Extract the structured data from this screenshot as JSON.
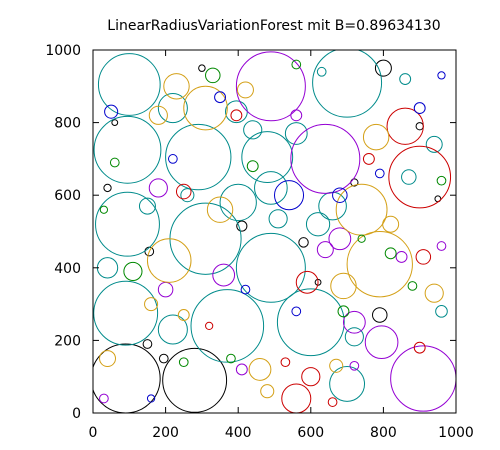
{
  "chart_data": {
    "type": "scatter",
    "title": "LinearRadiusVariationForest mit B=0.89634130",
    "xlabel": "",
    "ylabel": "",
    "xlim": [
      0,
      1000
    ],
    "ylim": [
      0,
      1000
    ],
    "xticks": [
      0,
      200,
      400,
      600,
      800,
      1000
    ],
    "yticks": [
      0,
      200,
      400,
      600,
      800,
      1000
    ],
    "grid": false,
    "legend": "none",
    "marker": "open-circle",
    "series": [
      {
        "color": "#000000",
        "points": [
          {
            "x": 90,
            "y": 95,
            "r": 95
          },
          {
            "x": 280,
            "y": 90,
            "r": 88
          },
          {
            "x": 800,
            "y": 950,
            "r": 22
          },
          {
            "x": 410,
            "y": 515,
            "r": 14
          },
          {
            "x": 580,
            "y": 470,
            "r": 13
          },
          {
            "x": 790,
            "y": 270,
            "r": 20
          },
          {
            "x": 155,
            "y": 445,
            "r": 12
          },
          {
            "x": 150,
            "y": 190,
            "r": 12
          },
          {
            "x": 195,
            "y": 150,
            "r": 12
          },
          {
            "x": 900,
            "y": 790,
            "r": 10
          },
          {
            "x": 720,
            "y": 635,
            "r": 10
          },
          {
            "x": 950,
            "y": 590,
            "r": 8
          },
          {
            "x": 40,
            "y": 620,
            "r": 10
          },
          {
            "x": 60,
            "y": 800,
            "r": 8
          },
          {
            "x": 300,
            "y": 950,
            "r": 9
          },
          {
            "x": 620,
            "y": 360,
            "r": 8
          }
        ]
      },
      {
        "color": "#008b8b",
        "points": [
          {
            "x": 100,
            "y": 905,
            "r": 85
          },
          {
            "x": 95,
            "y": 725,
            "r": 92
          },
          {
            "x": 95,
            "y": 520,
            "r": 88
          },
          {
            "x": 90,
            "y": 275,
            "r": 88
          },
          {
            "x": 490,
            "y": 400,
            "r": 95
          },
          {
            "x": 600,
            "y": 250,
            "r": 92
          },
          {
            "x": 370,
            "y": 240,
            "r": 100
          },
          {
            "x": 700,
            "y": 910,
            "r": 95
          },
          {
            "x": 290,
            "y": 705,
            "r": 90
          },
          {
            "x": 310,
            "y": 480,
            "r": 98
          },
          {
            "x": 480,
            "y": 705,
            "r": 70
          },
          {
            "x": 400,
            "y": 580,
            "r": 50
          },
          {
            "x": 490,
            "y": 620,
            "r": 45
          },
          {
            "x": 220,
            "y": 840,
            "r": 40
          },
          {
            "x": 660,
            "y": 570,
            "r": 38
          },
          {
            "x": 620,
            "y": 520,
            "r": 32
          },
          {
            "x": 220,
            "y": 230,
            "r": 40
          },
          {
            "x": 700,
            "y": 80,
            "r": 48
          },
          {
            "x": 560,
            "y": 770,
            "r": 30
          },
          {
            "x": 510,
            "y": 535,
            "r": 25
          },
          {
            "x": 150,
            "y": 570,
            "r": 22
          },
          {
            "x": 40,
            "y": 400,
            "r": 28
          },
          {
            "x": 720,
            "y": 210,
            "r": 25
          },
          {
            "x": 870,
            "y": 650,
            "r": 20
          },
          {
            "x": 440,
            "y": 780,
            "r": 25
          },
          {
            "x": 395,
            "y": 830,
            "r": 30
          },
          {
            "x": 860,
            "y": 920,
            "r": 15
          },
          {
            "x": 940,
            "y": 740,
            "r": 22
          },
          {
            "x": 260,
            "y": 600,
            "r": 18
          },
          {
            "x": 960,
            "y": 280,
            "r": 16
          },
          {
            "x": 630,
            "y": 940,
            "r": 12
          }
        ]
      },
      {
        "color": "#9400d3",
        "points": [
          {
            "x": 640,
            "y": 700,
            "r": 95
          },
          {
            "x": 910,
            "y": 95,
            "r": 90
          },
          {
            "x": 490,
            "y": 900,
            "r": 95
          },
          {
            "x": 640,
            "y": 450,
            "r": 22
          },
          {
            "x": 360,
            "y": 380,
            "r": 30
          },
          {
            "x": 795,
            "y": 195,
            "r": 45
          },
          {
            "x": 720,
            "y": 250,
            "r": 30
          },
          {
            "x": 680,
            "y": 480,
            "r": 30
          },
          {
            "x": 180,
            "y": 620,
            "r": 25
          },
          {
            "x": 200,
            "y": 340,
            "r": 20
          },
          {
            "x": 410,
            "y": 120,
            "r": 15
          },
          {
            "x": 850,
            "y": 430,
            "r": 15
          },
          {
            "x": 560,
            "y": 820,
            "r": 15
          },
          {
            "x": 960,
            "y": 460,
            "r": 12
          },
          {
            "x": 720,
            "y": 130,
            "r": 12
          },
          {
            "x": 30,
            "y": 40,
            "r": 12
          }
        ]
      },
      {
        "color": "#cc0000",
        "points": [
          {
            "x": 900,
            "y": 650,
            "r": 85
          },
          {
            "x": 860,
            "y": 790,
            "r": 50
          },
          {
            "x": 250,
            "y": 610,
            "r": 20
          },
          {
            "x": 590,
            "y": 360,
            "r": 30
          },
          {
            "x": 560,
            "y": 40,
            "r": 40
          },
          {
            "x": 600,
            "y": 100,
            "r": 25
          },
          {
            "x": 395,
            "y": 820,
            "r": 15
          },
          {
            "x": 910,
            "y": 430,
            "r": 20
          },
          {
            "x": 760,
            "y": 700,
            "r": 15
          },
          {
            "x": 660,
            "y": 30,
            "r": 12
          },
          {
            "x": 900,
            "y": 180,
            "r": 15
          },
          {
            "x": 320,
            "y": 240,
            "r": 10
          },
          {
            "x": 530,
            "y": 140,
            "r": 12
          }
        ]
      },
      {
        "color": "#d4a017",
        "points": [
          {
            "x": 210,
            "y": 420,
            "r": 60
          },
          {
            "x": 740,
            "y": 560,
            "r": 70
          },
          {
            "x": 310,
            "y": 840,
            "r": 60
          },
          {
            "x": 790,
            "y": 410,
            "r": 90
          },
          {
            "x": 230,
            "y": 900,
            "r": 35
          },
          {
            "x": 780,
            "y": 760,
            "r": 35
          },
          {
            "x": 350,
            "y": 560,
            "r": 35
          },
          {
            "x": 690,
            "y": 350,
            "r": 35
          },
          {
            "x": 460,
            "y": 120,
            "r": 30
          },
          {
            "x": 180,
            "y": 820,
            "r": 25
          },
          {
            "x": 420,
            "y": 890,
            "r": 22
          },
          {
            "x": 820,
            "y": 520,
            "r": 22
          },
          {
            "x": 40,
            "y": 150,
            "r": 22
          },
          {
            "x": 940,
            "y": 330,
            "r": 25
          },
          {
            "x": 480,
            "y": 60,
            "r": 18
          },
          {
            "x": 160,
            "y": 300,
            "r": 18
          },
          {
            "x": 250,
            "y": 270,
            "r": 15
          },
          {
            "x": 670,
            "y": 130,
            "r": 18
          }
        ]
      },
      {
        "color": "#0000cc",
        "points": [
          {
            "x": 540,
            "y": 600,
            "r": 40
          },
          {
            "x": 680,
            "y": 600,
            "r": 20
          },
          {
            "x": 50,
            "y": 830,
            "r": 18
          },
          {
            "x": 900,
            "y": 840,
            "r": 15
          },
          {
            "x": 350,
            "y": 870,
            "r": 15
          },
          {
            "x": 220,
            "y": 700,
            "r": 12
          },
          {
            "x": 560,
            "y": 280,
            "r": 12
          },
          {
            "x": 790,
            "y": 660,
            "r": 12
          },
          {
            "x": 160,
            "y": 40,
            "r": 10
          },
          {
            "x": 420,
            "y": 340,
            "r": 12
          },
          {
            "x": 960,
            "y": 930,
            "r": 10
          }
        ]
      },
      {
        "color": "#008800",
        "points": [
          {
            "x": 110,
            "y": 390,
            "r": 25
          },
          {
            "x": 330,
            "y": 930,
            "r": 20
          },
          {
            "x": 820,
            "y": 440,
            "r": 15
          },
          {
            "x": 60,
            "y": 690,
            "r": 12
          },
          {
            "x": 440,
            "y": 680,
            "r": 15
          },
          {
            "x": 960,
            "y": 640,
            "r": 12
          },
          {
            "x": 690,
            "y": 280,
            "r": 15
          },
          {
            "x": 30,
            "y": 560,
            "r": 10
          },
          {
            "x": 560,
            "y": 960,
            "r": 12
          },
          {
            "x": 250,
            "y": 140,
            "r": 12
          },
          {
            "x": 880,
            "y": 350,
            "r": 12
          },
          {
            "x": 740,
            "y": 480,
            "r": 10
          },
          {
            "x": 380,
            "y": 150,
            "r": 12
          }
        ]
      }
    ]
  }
}
